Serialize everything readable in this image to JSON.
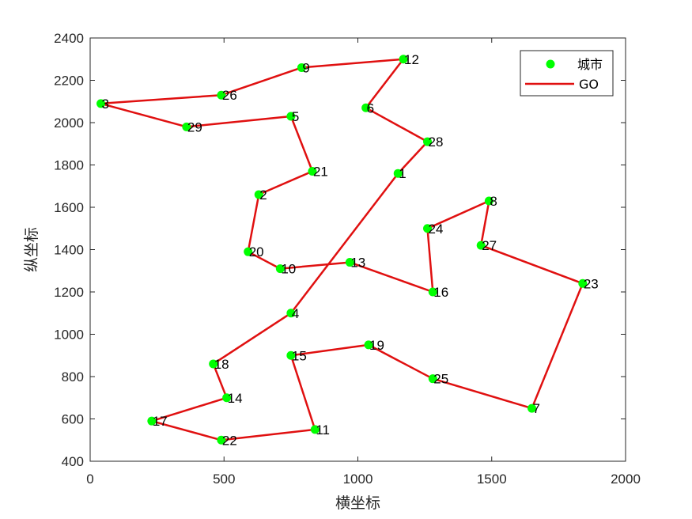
{
  "chart_data": {
    "type": "scatter",
    "title": "",
    "xlabel": "横坐标",
    "ylabel": "纵坐标",
    "xlim": [
      0,
      2000
    ],
    "ylim": [
      400,
      2400
    ],
    "xticks": [
      0,
      500,
      1000,
      1500,
      2000
    ],
    "yticks": [
      400,
      600,
      800,
      1000,
      1200,
      1400,
      1600,
      1800,
      2000,
      2200,
      2400
    ],
    "grid": false,
    "legend_position": "top-right",
    "colors": {
      "points": "#00ff00",
      "route": "#e01010"
    },
    "cities": [
      {
        "id": "1",
        "x": 1150,
        "y": 1760
      },
      {
        "id": "2",
        "x": 630,
        "y": 1660
      },
      {
        "id": "3",
        "x": 40,
        "y": 2090
      },
      {
        "id": "4",
        "x": 750,
        "y": 1100
      },
      {
        "id": "5",
        "x": 750,
        "y": 2030
      },
      {
        "id": "6",
        "x": 1030,
        "y": 2070
      },
      {
        "id": "7",
        "x": 1650,
        "y": 650
      },
      {
        "id": "8",
        "x": 1490,
        "y": 1630
      },
      {
        "id": "9",
        "x": 790,
        "y": 2260
      },
      {
        "id": "10",
        "x": 710,
        "y": 1310
      },
      {
        "id": "11",
        "x": 840,
        "y": 550
      },
      {
        "id": "12",
        "x": 1170,
        "y": 2300
      },
      {
        "id": "13",
        "x": 970,
        "y": 1340
      },
      {
        "id": "14",
        "x": 510,
        "y": 700
      },
      {
        "id": "15",
        "x": 750,
        "y": 900
      },
      {
        "id": "16",
        "x": 1280,
        "y": 1200
      },
      {
        "id": "17",
        "x": 230,
        "y": 590
      },
      {
        "id": "18",
        "x": 460,
        "y": 860
      },
      {
        "id": "19",
        "x": 1040,
        "y": 950
      },
      {
        "id": "20",
        "x": 590,
        "y": 1390
      },
      {
        "id": "21",
        "x": 830,
        "y": 1770
      },
      {
        "id": "22",
        "x": 490,
        "y": 500
      },
      {
        "id": "23",
        "x": 1840,
        "y": 1240
      },
      {
        "id": "24",
        "x": 1260,
        "y": 1500
      },
      {
        "id": "25",
        "x": 1280,
        "y": 790
      },
      {
        "id": "26",
        "x": 490,
        "y": 2130
      },
      {
        "id": "27",
        "x": 1460,
        "y": 1420
      },
      {
        "id": "28",
        "x": 1260,
        "y": 1910
      },
      {
        "id": "29",
        "x": 360,
        "y": 1980
      }
    ],
    "route": [
      "1",
      "4",
      "18",
      "14",
      "17",
      "22",
      "11",
      "15",
      "19",
      "25",
      "7",
      "23",
      "27",
      "8",
      "24",
      "16",
      "13",
      "10",
      "20",
      "2",
      "21",
      "5",
      "29",
      "3",
      "26",
      "9",
      "12",
      "6",
      "28",
      "1"
    ],
    "legend": [
      {
        "label": "城市",
        "kind": "marker"
      },
      {
        "label": "GO",
        "kind": "line"
      }
    ]
  }
}
